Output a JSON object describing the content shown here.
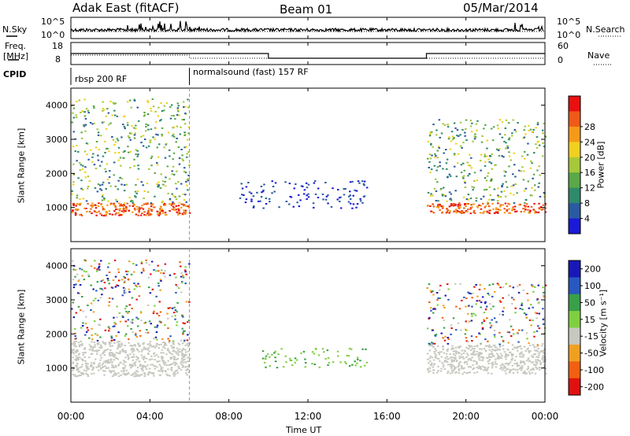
{
  "header": {
    "radar": "Adak East (fitACF)",
    "beam": "Beam 01",
    "date": "05/Mar/2014"
  },
  "noise_panel": {
    "left_label": "N.Sky",
    "right_label": "N.Search",
    "left_ticks": [
      "10^5",
      "10^0"
    ],
    "right_ticks": [
      "10^5",
      "10^0"
    ]
  },
  "freq_panel": {
    "left_label_top": "Freq.",
    "left_label_bottom": "[MHz]",
    "right_label": "Nave",
    "left_ticks": [
      "18",
      "8"
    ],
    "right_ticks": [
      "60",
      "0"
    ]
  },
  "cpid": {
    "label": "CPID",
    "segments": [
      {
        "start_hour": 0,
        "name": "rbsp 200 RF"
      },
      {
        "start_hour": 6,
        "name": "normalsound (fast) 157 RF"
      }
    ]
  },
  "chart_data": [
    {
      "type": "heatmap",
      "title": "",
      "ylabel": "Slant Range [km]",
      "xlabel": "",
      "ylim": [
        0,
        4500
      ],
      "yticks": [
        "1000",
        "2000",
        "3000",
        "4000"
      ],
      "colorbar": {
        "label": "Power [dB]",
        "ticks": [
          "4",
          "8",
          "12",
          "16",
          "20",
          "24",
          "28"
        ],
        "colors": [
          "#1a1ad8",
          "#2a5aa0",
          "#2f8a6a",
          "#5aa848",
          "#a6c83a",
          "#f0d020",
          "#f59a18",
          "#ef5a18",
          "#e81010"
        ]
      },
      "bands": [
        {
          "start_hour": 0,
          "end_hour": 6,
          "range_low": 780,
          "range_high": 1150,
          "level": "high"
        },
        {
          "start_hour": 0,
          "end_hour": 6,
          "range_low": 1150,
          "range_high": 4200,
          "level": "mixed"
        },
        {
          "start_hour": 8.5,
          "end_hour": 15,
          "range_low": 1000,
          "range_high": 1800,
          "level": "low"
        },
        {
          "start_hour": 18,
          "end_hour": 24,
          "range_low": 850,
          "range_high": 1150,
          "level": "high"
        },
        {
          "start_hour": 18,
          "end_hour": 24,
          "range_low": 1150,
          "range_high": 3600,
          "level": "mixed"
        }
      ]
    },
    {
      "type": "heatmap",
      "title": "",
      "ylabel": "Slant Range [km]",
      "xlabel": "Time UT",
      "ylim": [
        0,
        4500
      ],
      "yticks": [
        "1000",
        "2000",
        "3000",
        "4000"
      ],
      "colorbar": {
        "label": "Velocity [m s⁻¹]",
        "ticks": [
          "200",
          "100",
          "50",
          "15",
          "-15",
          "-50",
          "-100",
          "-200"
        ],
        "colors": [
          "#1818b8",
          "#2858c0",
          "#38a048",
          "#7fd040",
          "#c8c8c0",
          "#f0a020",
          "#f06010",
          "#e01010"
        ]
      },
      "bands": [
        {
          "start_hour": 0,
          "end_hour": 6,
          "range_low": 780,
          "range_high": 1800,
          "level": "ground"
        },
        {
          "start_hour": 0,
          "end_hour": 6,
          "range_low": 1800,
          "range_high": 4200,
          "level": "mixed"
        },
        {
          "start_hour": 9.5,
          "end_hour": 15,
          "range_low": 1000,
          "range_high": 1600,
          "level": "green"
        },
        {
          "start_hour": 18,
          "end_hour": 24,
          "range_low": 850,
          "range_high": 1700,
          "level": "ground"
        },
        {
          "start_hour": 18,
          "end_hour": 24,
          "range_low": 1700,
          "range_high": 3500,
          "level": "mixed"
        }
      ]
    }
  ],
  "time_axis": {
    "xlim": [
      0,
      24
    ],
    "tick_hours": [
      0,
      4,
      8,
      12,
      16,
      20,
      24
    ],
    "tick_labels": [
      "00:00",
      "04:00",
      "08:00",
      "12:00",
      "16:00",
      "20:00",
      "00:00"
    ],
    "label": "Time UT"
  }
}
